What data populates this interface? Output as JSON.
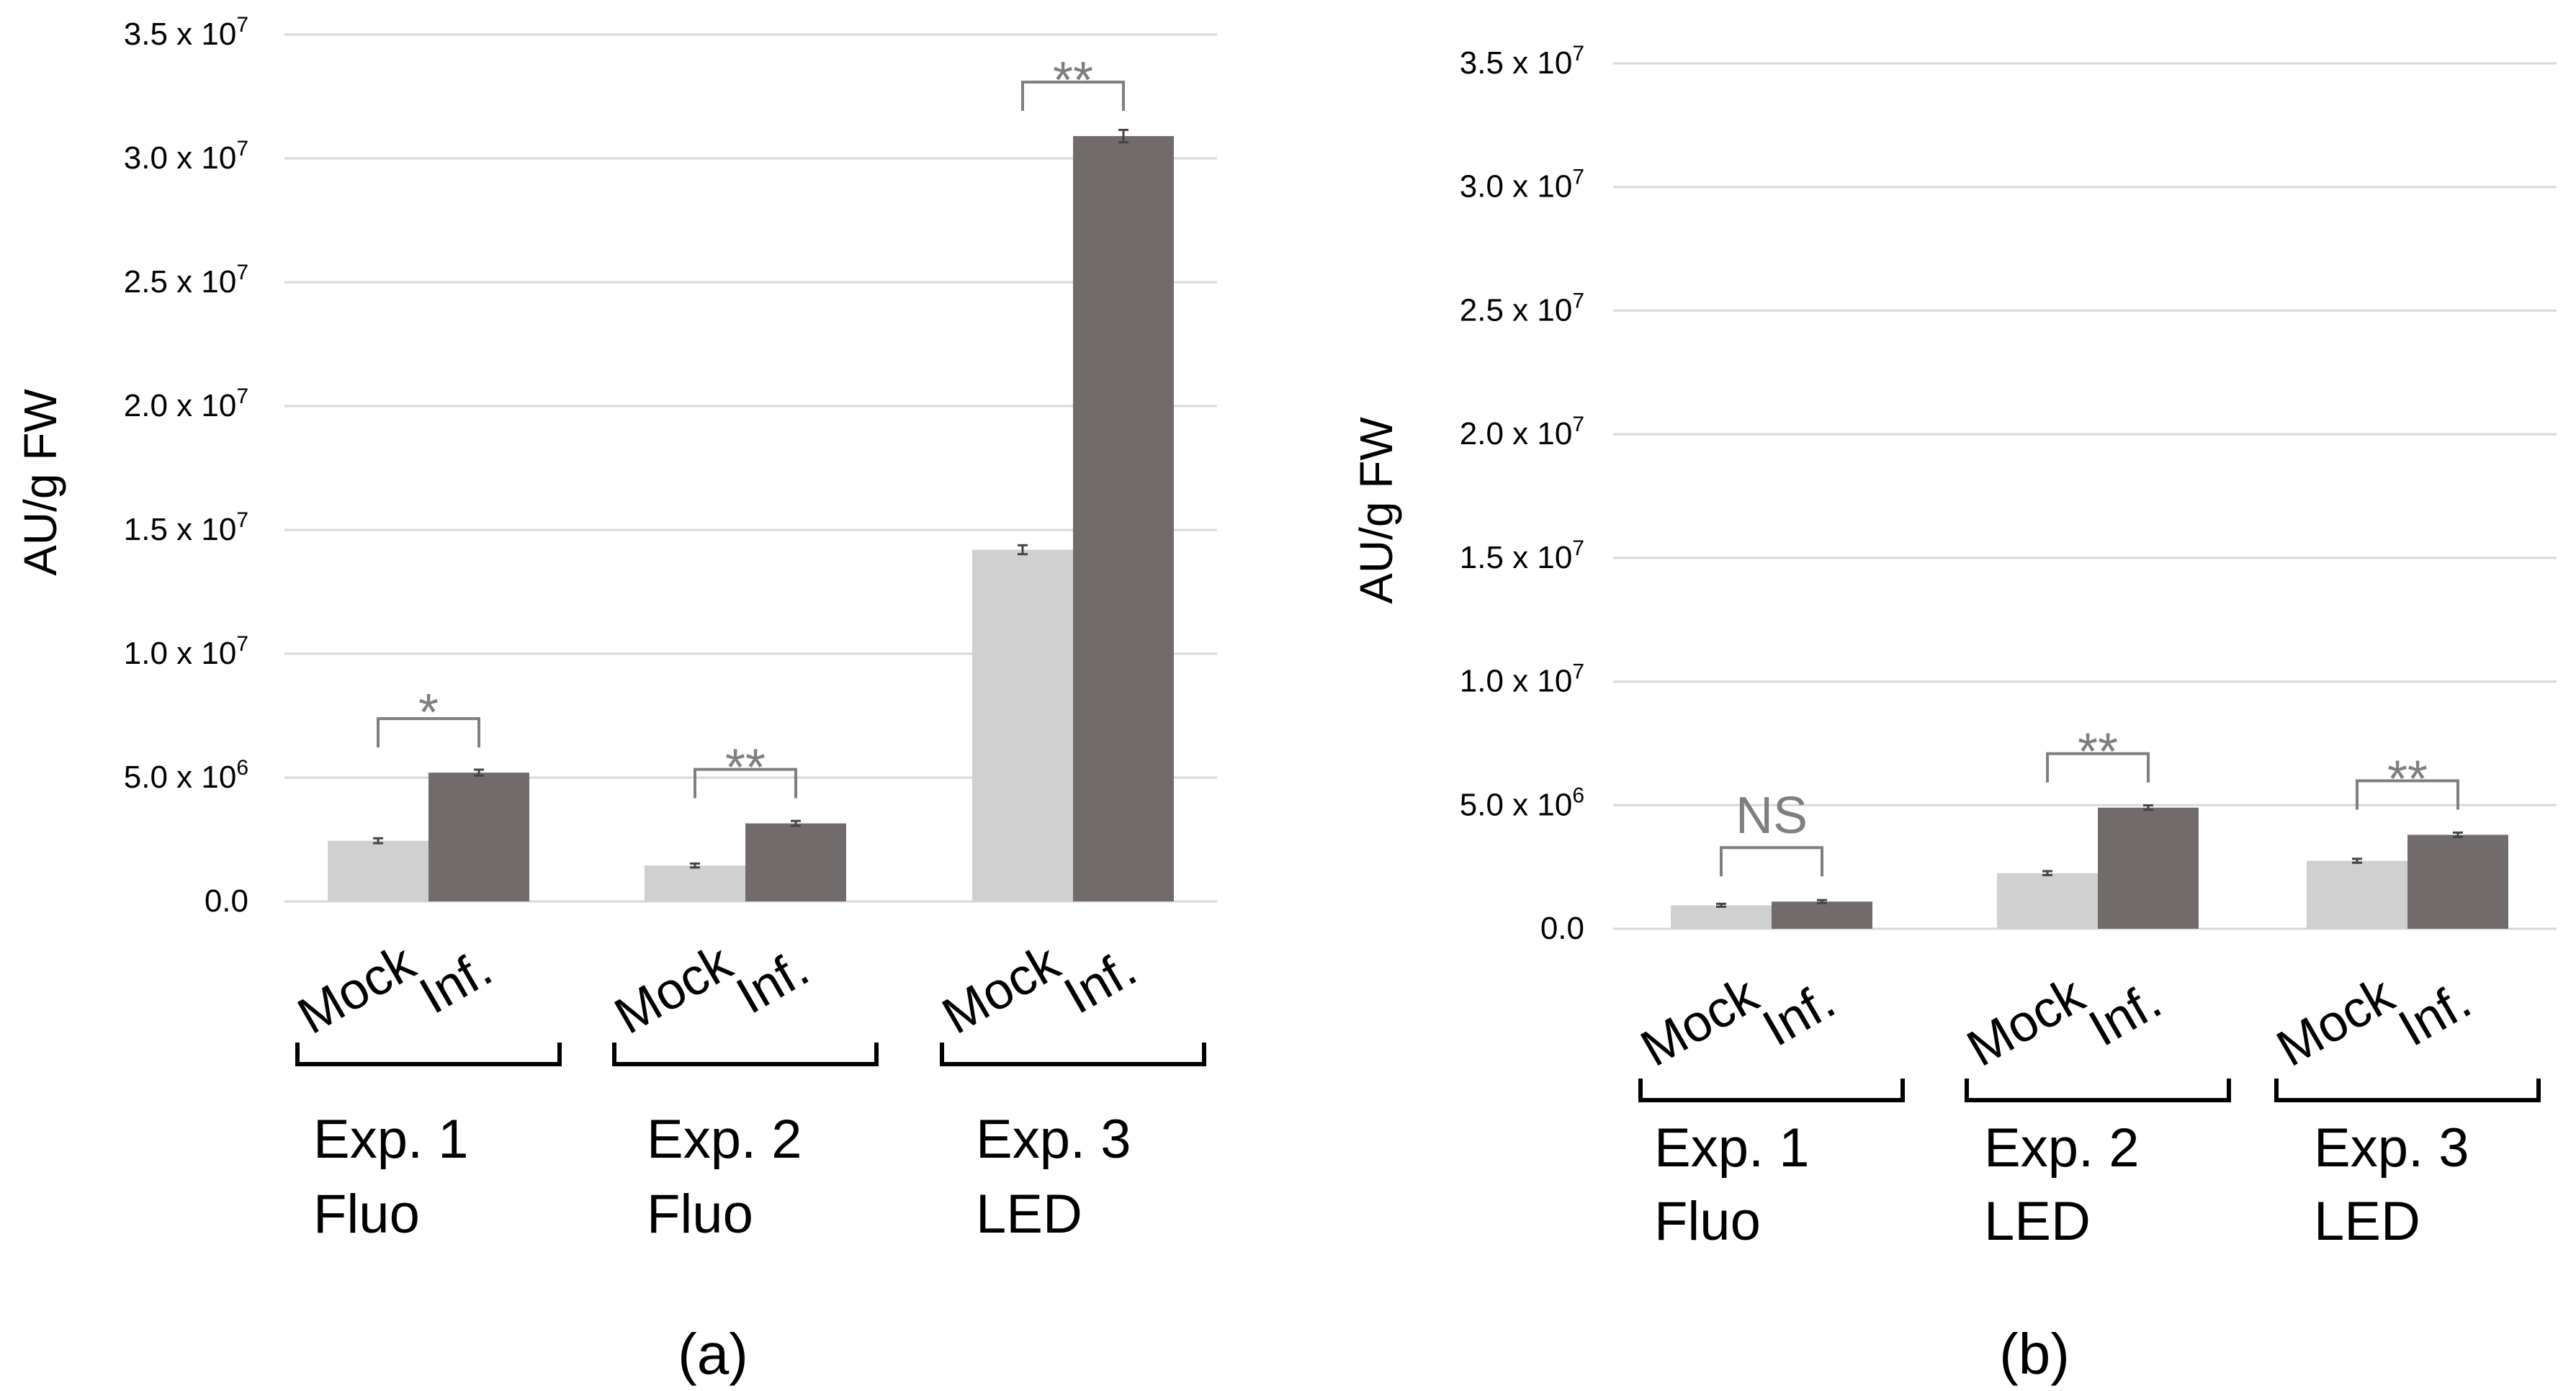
{
  "colors": {
    "mock": "#d0d0d0",
    "inf": "#716c6b",
    "grid": "#d9d9d9",
    "bracket": "#7f7f7f",
    "error": "#444444"
  },
  "chart_data": [
    {
      "type": "bar",
      "panel_label": "(a)",
      "ylabel": "AU/g FW",
      "ylim": [
        0,
        35000000
      ],
      "yticks": [
        {
          "value": 0,
          "mant": "0.0",
          "exp": ""
        },
        {
          "value": 5000000,
          "mant": "5.0 x 10",
          "exp": "6"
        },
        {
          "value": 10000000,
          "mant": "1.0 x 10",
          "exp": "7"
        },
        {
          "value": 15000000,
          "mant": "1.5 x 10",
          "exp": "7"
        },
        {
          "value": 20000000,
          "mant": "2.0 x 10",
          "exp": "7"
        },
        {
          "value": 25000000,
          "mant": "2.5 x 10",
          "exp": "7"
        },
        {
          "value": 30000000,
          "mant": "3.0 x 10",
          "exp": "7"
        },
        {
          "value": 35000000,
          "mant": "3.5 x 10",
          "exp": "7"
        }
      ],
      "series_labels": [
        "Mock",
        "Inf."
      ],
      "groups": [
        {
          "name": "Exp. 1",
          "light": "Fluo",
          "mock": 2450000,
          "inf": 5200000,
          "mock_err": 100000,
          "inf_err": 120000,
          "sig": "*"
        },
        {
          "name": "Exp. 2",
          "light": "Fluo",
          "mock": 1450000,
          "inf": 3150000,
          "mock_err": 80000,
          "inf_err": 100000,
          "sig": "**"
        },
        {
          "name": "Exp. 3",
          "light": "LED",
          "mock": 14200000,
          "inf": 30900000,
          "mock_err": 180000,
          "inf_err": 250000,
          "sig": "**"
        }
      ]
    },
    {
      "type": "bar",
      "panel_label": "(b)",
      "ylabel": "AU/g FW",
      "ylim": [
        0,
        35000000
      ],
      "yticks": [
        {
          "value": 0,
          "mant": "0.0",
          "exp": ""
        },
        {
          "value": 5000000,
          "mant": "5.0 x 10",
          "exp": "6"
        },
        {
          "value": 10000000,
          "mant": "1.0 x 10",
          "exp": "7"
        },
        {
          "value": 15000000,
          "mant": "1.5 x 10",
          "exp": "7"
        },
        {
          "value": 20000000,
          "mant": "2.0 x 10",
          "exp": "7"
        },
        {
          "value": 25000000,
          "mant": "2.5 x 10",
          "exp": "7"
        },
        {
          "value": 30000000,
          "mant": "3.0 x 10",
          "exp": "7"
        },
        {
          "value": 35000000,
          "mant": "3.5 x 10",
          "exp": "7"
        }
      ],
      "series_labels": [
        "Mock",
        "Inf."
      ],
      "groups": [
        {
          "name": "Exp. 1",
          "light": "Fluo",
          "mock": 950000,
          "inf": 1100000,
          "mock_err": 60000,
          "inf_err": 60000,
          "sig": "NS"
        },
        {
          "name": "Exp. 2",
          "light": "LED",
          "mock": 2250000,
          "inf": 4900000,
          "mock_err": 80000,
          "inf_err": 90000,
          "sig": "**"
        },
        {
          "name": "Exp. 3",
          "light": "LED",
          "mock": 2750000,
          "inf": 3800000,
          "mock_err": 80000,
          "inf_err": 90000,
          "sig": "**"
        }
      ]
    }
  ]
}
